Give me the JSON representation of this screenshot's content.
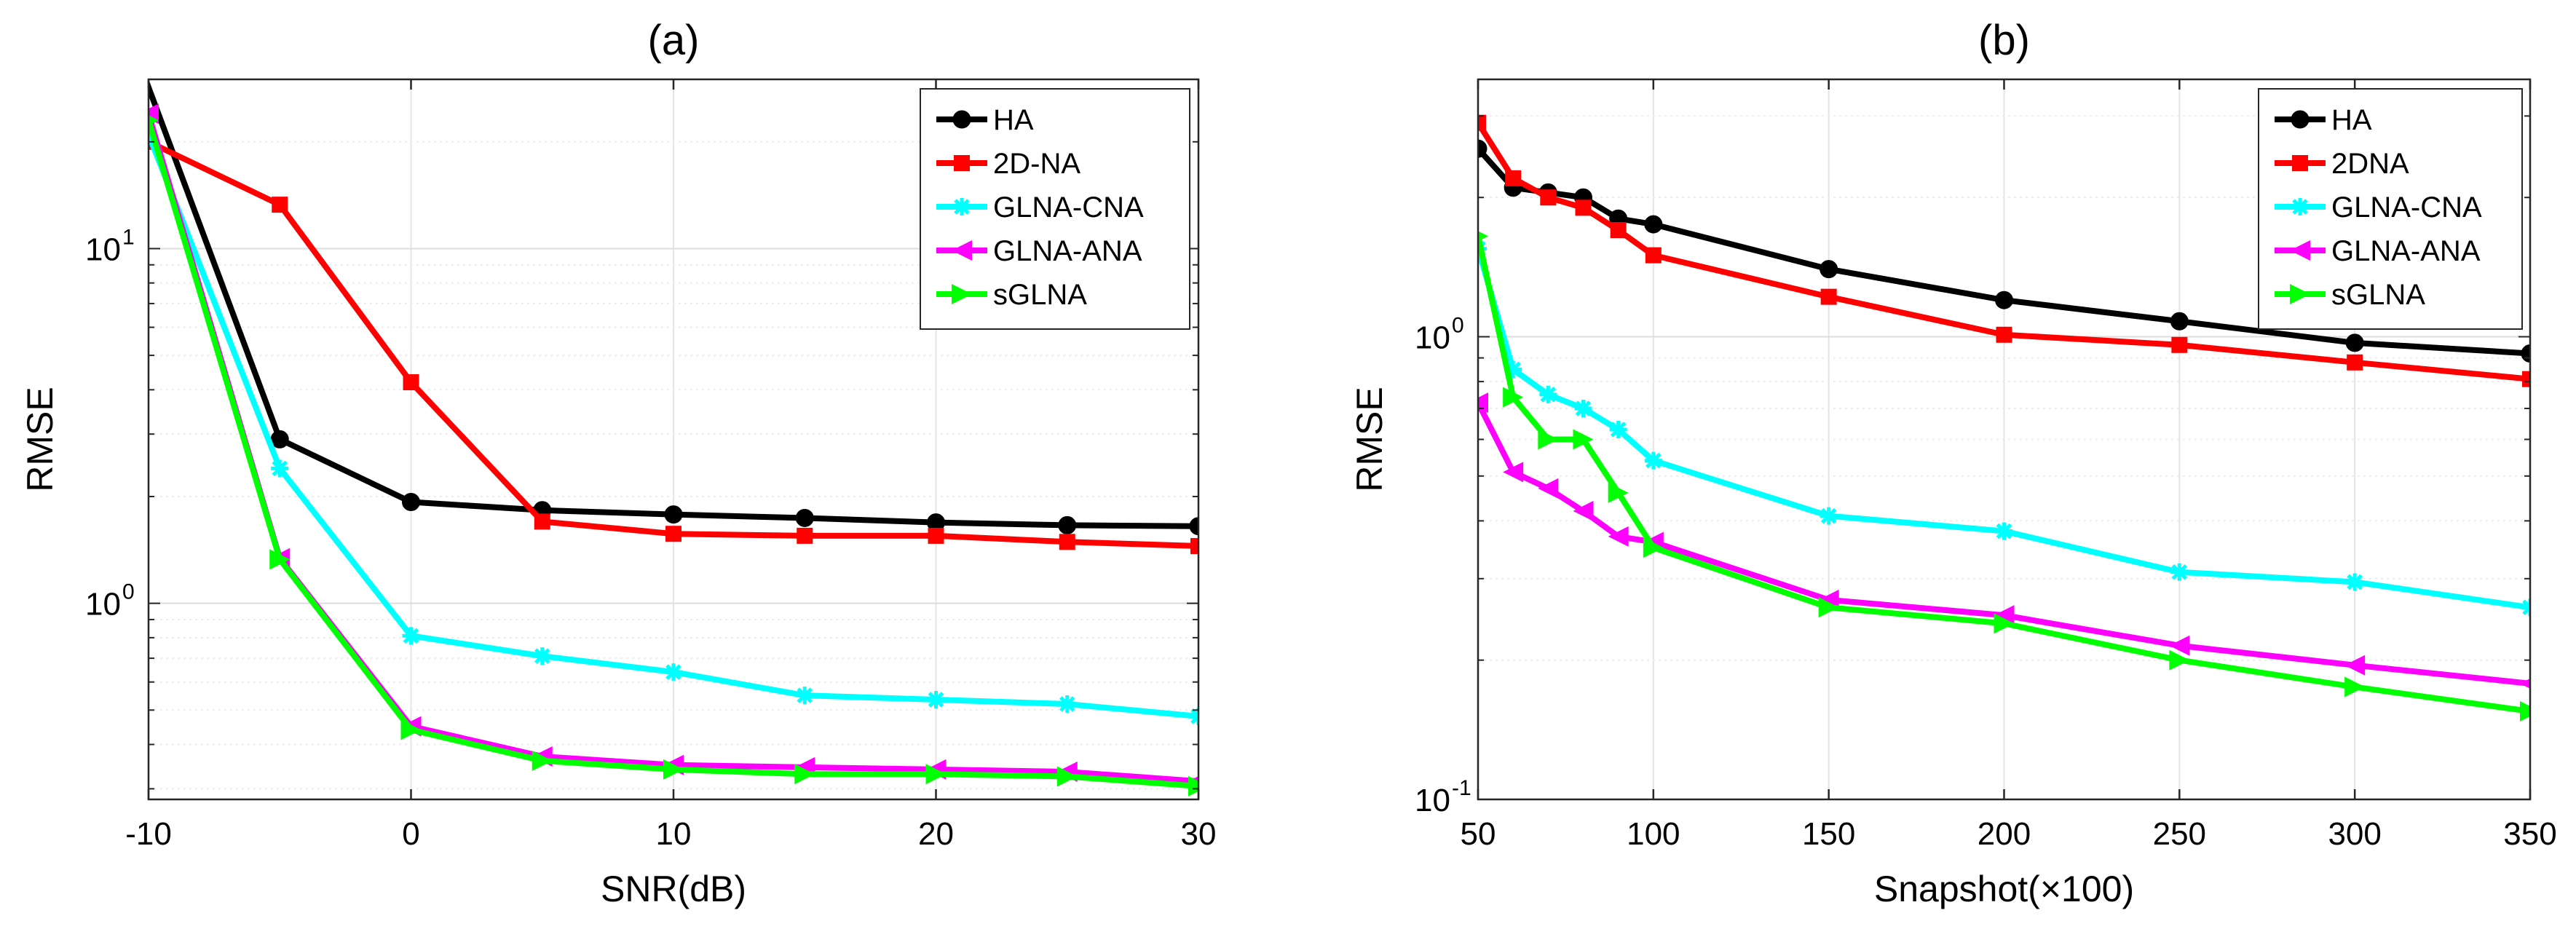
{
  "chart_data": [
    {
      "type": "line",
      "title": "(a)",
      "xlabel": "SNR(dB)",
      "ylabel": "RMSE",
      "yscale": "log",
      "xlim": [
        -10,
        30
      ],
      "ylim": [
        0.28,
        30
      ],
      "xticks": [
        -10,
        0,
        10,
        20,
        30
      ],
      "xtick_labels": [
        "-10",
        "0",
        "10",
        "20",
        "30"
      ],
      "yticks": [
        1,
        10
      ],
      "ytick_labels": [
        {
          "base": "10",
          "exp": "0"
        },
        {
          "base": "10",
          "exp": "1"
        }
      ],
      "grid": true,
      "legend_position": "top-right",
      "x": [
        -10,
        -5,
        0,
        5,
        10,
        15,
        20,
        25,
        30
      ],
      "series": [
        {
          "name": "HA",
          "color": "#000000",
          "marker": "circle",
          "x": [
            -11,
            -5,
            0,
            5,
            10,
            15,
            20,
            25,
            30
          ],
          "values": [
            45,
            2.9,
            1.93,
            1.83,
            1.78,
            1.74,
            1.69,
            1.66,
            1.65
          ]
        },
        {
          "name": "2D-NA",
          "color": "#ff0000",
          "marker": "square",
          "x": [
            -10,
            -5,
            0,
            5,
            10,
            15,
            20,
            25,
            30
          ],
          "values": [
            20,
            13.3,
            4.2,
            1.7,
            1.57,
            1.55,
            1.55,
            1.49,
            1.45
          ]
        },
        {
          "name": "GLNA-CNA",
          "color": "#00ffff",
          "marker": "star",
          "x": [
            -10,
            -5,
            0,
            5,
            10,
            15,
            20,
            25,
            30
          ],
          "values": [
            21,
            2.4,
            0.81,
            0.71,
            0.64,
            0.55,
            0.535,
            0.52,
            0.48
          ]
        },
        {
          "name": "GLNA-ANA",
          "color": "#ff00ff",
          "marker": "triangle-left",
          "x": [
            -10,
            -5,
            0,
            5,
            10,
            15,
            20,
            25,
            30
          ],
          "values": [
            24,
            1.34,
            0.45,
            0.37,
            0.35,
            0.345,
            0.34,
            0.335,
            0.315
          ]
        },
        {
          "name": "sGLNA",
          "color": "#00ff00",
          "marker": "triangle-right",
          "x": [
            -10,
            -5,
            0,
            5,
            10,
            15,
            20,
            25,
            30
          ],
          "values": [
            23,
            1.33,
            0.44,
            0.36,
            0.34,
            0.33,
            0.33,
            0.325,
            0.305
          ]
        }
      ]
    },
    {
      "type": "line",
      "title": "(b)",
      "xlabel": "Snapshot(×100)",
      "ylabel": "RMSE",
      "yscale": "log",
      "xlim": [
        50,
        350
      ],
      "ylim": [
        0.1,
        3.6
      ],
      "xticks": [
        50,
        100,
        150,
        200,
        250,
        300,
        350
      ],
      "xtick_labels": [
        "50",
        "100",
        "150",
        "200",
        "250",
        "300",
        "350"
      ],
      "yticks": [
        0.1,
        1
      ],
      "ytick_labels": [
        {
          "base": "10",
          "exp": "-1"
        },
        {
          "base": "10",
          "exp": "0"
        }
      ],
      "grid": true,
      "legend_position": "top-right",
      "x": [
        50,
        60,
        70,
        80,
        90,
        100,
        150,
        200,
        250,
        300,
        350
      ],
      "series": [
        {
          "name": "HA",
          "color": "#000000",
          "marker": "circle",
          "values": [
            2.55,
            2.1,
            2.05,
            2.0,
            1.8,
            1.75,
            1.4,
            1.2,
            1.08,
            0.97,
            0.92
          ]
        },
        {
          "name": "2DNA",
          "color": "#ff0000",
          "marker": "square",
          "values": [
            2.9,
            2.2,
            2.0,
            1.9,
            1.7,
            1.5,
            1.22,
            1.01,
            0.96,
            0.88,
            0.81
          ]
        },
        {
          "name": "GLNA-CNA",
          "color": "#00ffff",
          "marker": "star",
          "values": [
            1.55,
            0.85,
            0.75,
            0.7,
            0.63,
            0.54,
            0.41,
            0.38,
            0.31,
            0.295,
            0.26
          ]
        },
        {
          "name": "GLNA-ANA",
          "color": "#ff00ff",
          "marker": "triangle-left",
          "values": [
            0.72,
            0.51,
            0.47,
            0.42,
            0.37,
            0.36,
            0.27,
            0.25,
            0.215,
            0.195,
            0.178
          ]
        },
        {
          "name": "sGLNA",
          "color": "#00ff00",
          "marker": "triangle-right",
          "values": [
            1.65,
            0.74,
            0.6,
            0.6,
            0.46,
            0.35,
            0.26,
            0.24,
            0.2,
            0.175,
            0.155
          ]
        }
      ]
    }
  ]
}
